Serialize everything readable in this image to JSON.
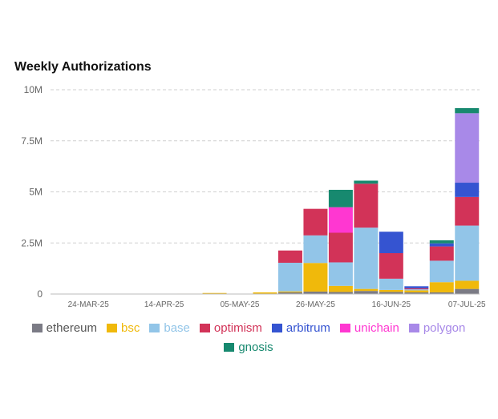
{
  "chart_data": {
    "type": "bar",
    "stacked": true,
    "title": "Weekly Authorizations",
    "y_ticks": [
      "0",
      "2.5M",
      "5M",
      "7.5M",
      "10M"
    ],
    "ylim": [
      0,
      10000000
    ],
    "grid": "horizontal-dashed",
    "legend_position": "bottom",
    "x_tick_labels": [
      "24-MAR-25",
      "14-APR-25",
      "05-MAY-25",
      "26-MAY-25",
      "16-JUN-25",
      "07-JUL-25"
    ],
    "categories": [
      "17-MAR-25",
      "24-MAR-25",
      "31-MAR-25",
      "07-APR-25",
      "14-APR-25",
      "21-APR-25",
      "28-APR-25",
      "05-MAY-25",
      "12-MAY-25",
      "19-MAY-25",
      "26-MAY-25",
      "02-JUN-25",
      "09-JUN-25",
      "16-JUN-25",
      "23-JUN-25",
      "30-JUN-25",
      "07-JUL-25"
    ],
    "series": [
      {
        "name": "ethereum",
        "color": "#7b7b85",
        "values": [
          0,
          0,
          0,
          0,
          0,
          0,
          0,
          0,
          0,
          80000,
          120000,
          100000,
          150000,
          100000,
          80000,
          80000,
          250000
        ]
      },
      {
        "name": "bsc",
        "color": "#f0b90b",
        "values": [
          0,
          0,
          0,
          0,
          0,
          20000,
          50000,
          0,
          80000,
          50000,
          1400000,
          300000,
          100000,
          100000,
          100000,
          500000,
          400000
        ]
      },
      {
        "name": "base",
        "color": "#92c5e8",
        "values": [
          0,
          0,
          0,
          0,
          0,
          0,
          0,
          0,
          0,
          1400000,
          1350000,
          1150000,
          3000000,
          550000,
          50000,
          1050000,
          2700000
        ]
      },
      {
        "name": "optimism",
        "color": "#d23358",
        "values": [
          0,
          0,
          0,
          0,
          0,
          0,
          0,
          0,
          0,
          600000,
          1300000,
          1450000,
          2150000,
          1250000,
          50000,
          700000,
          1400000
        ]
      },
      {
        "name": "arbitrum",
        "color": "#3554d1",
        "values": [
          0,
          0,
          0,
          0,
          0,
          0,
          0,
          0,
          0,
          0,
          0,
          0,
          0,
          1050000,
          100000,
          150000,
          700000
        ]
      },
      {
        "name": "unichain",
        "color": "#ff37d1",
        "values": [
          0,
          0,
          0,
          0,
          0,
          0,
          0,
          0,
          0,
          0,
          0,
          1250000,
          0,
          0,
          0,
          0,
          0
        ]
      },
      {
        "name": "polygon",
        "color": "#a889e8",
        "values": [
          0,
          0,
          0,
          0,
          0,
          0,
          0,
          0,
          0,
          0,
          0,
          0,
          0,
          0,
          0,
          0,
          3400000
        ]
      },
      {
        "name": "gnosis",
        "color": "#17896f",
        "values": [
          0,
          0,
          0,
          0,
          0,
          0,
          0,
          0,
          0,
          0,
          0,
          850000,
          150000,
          0,
          0,
          150000,
          250000
        ]
      }
    ]
  }
}
